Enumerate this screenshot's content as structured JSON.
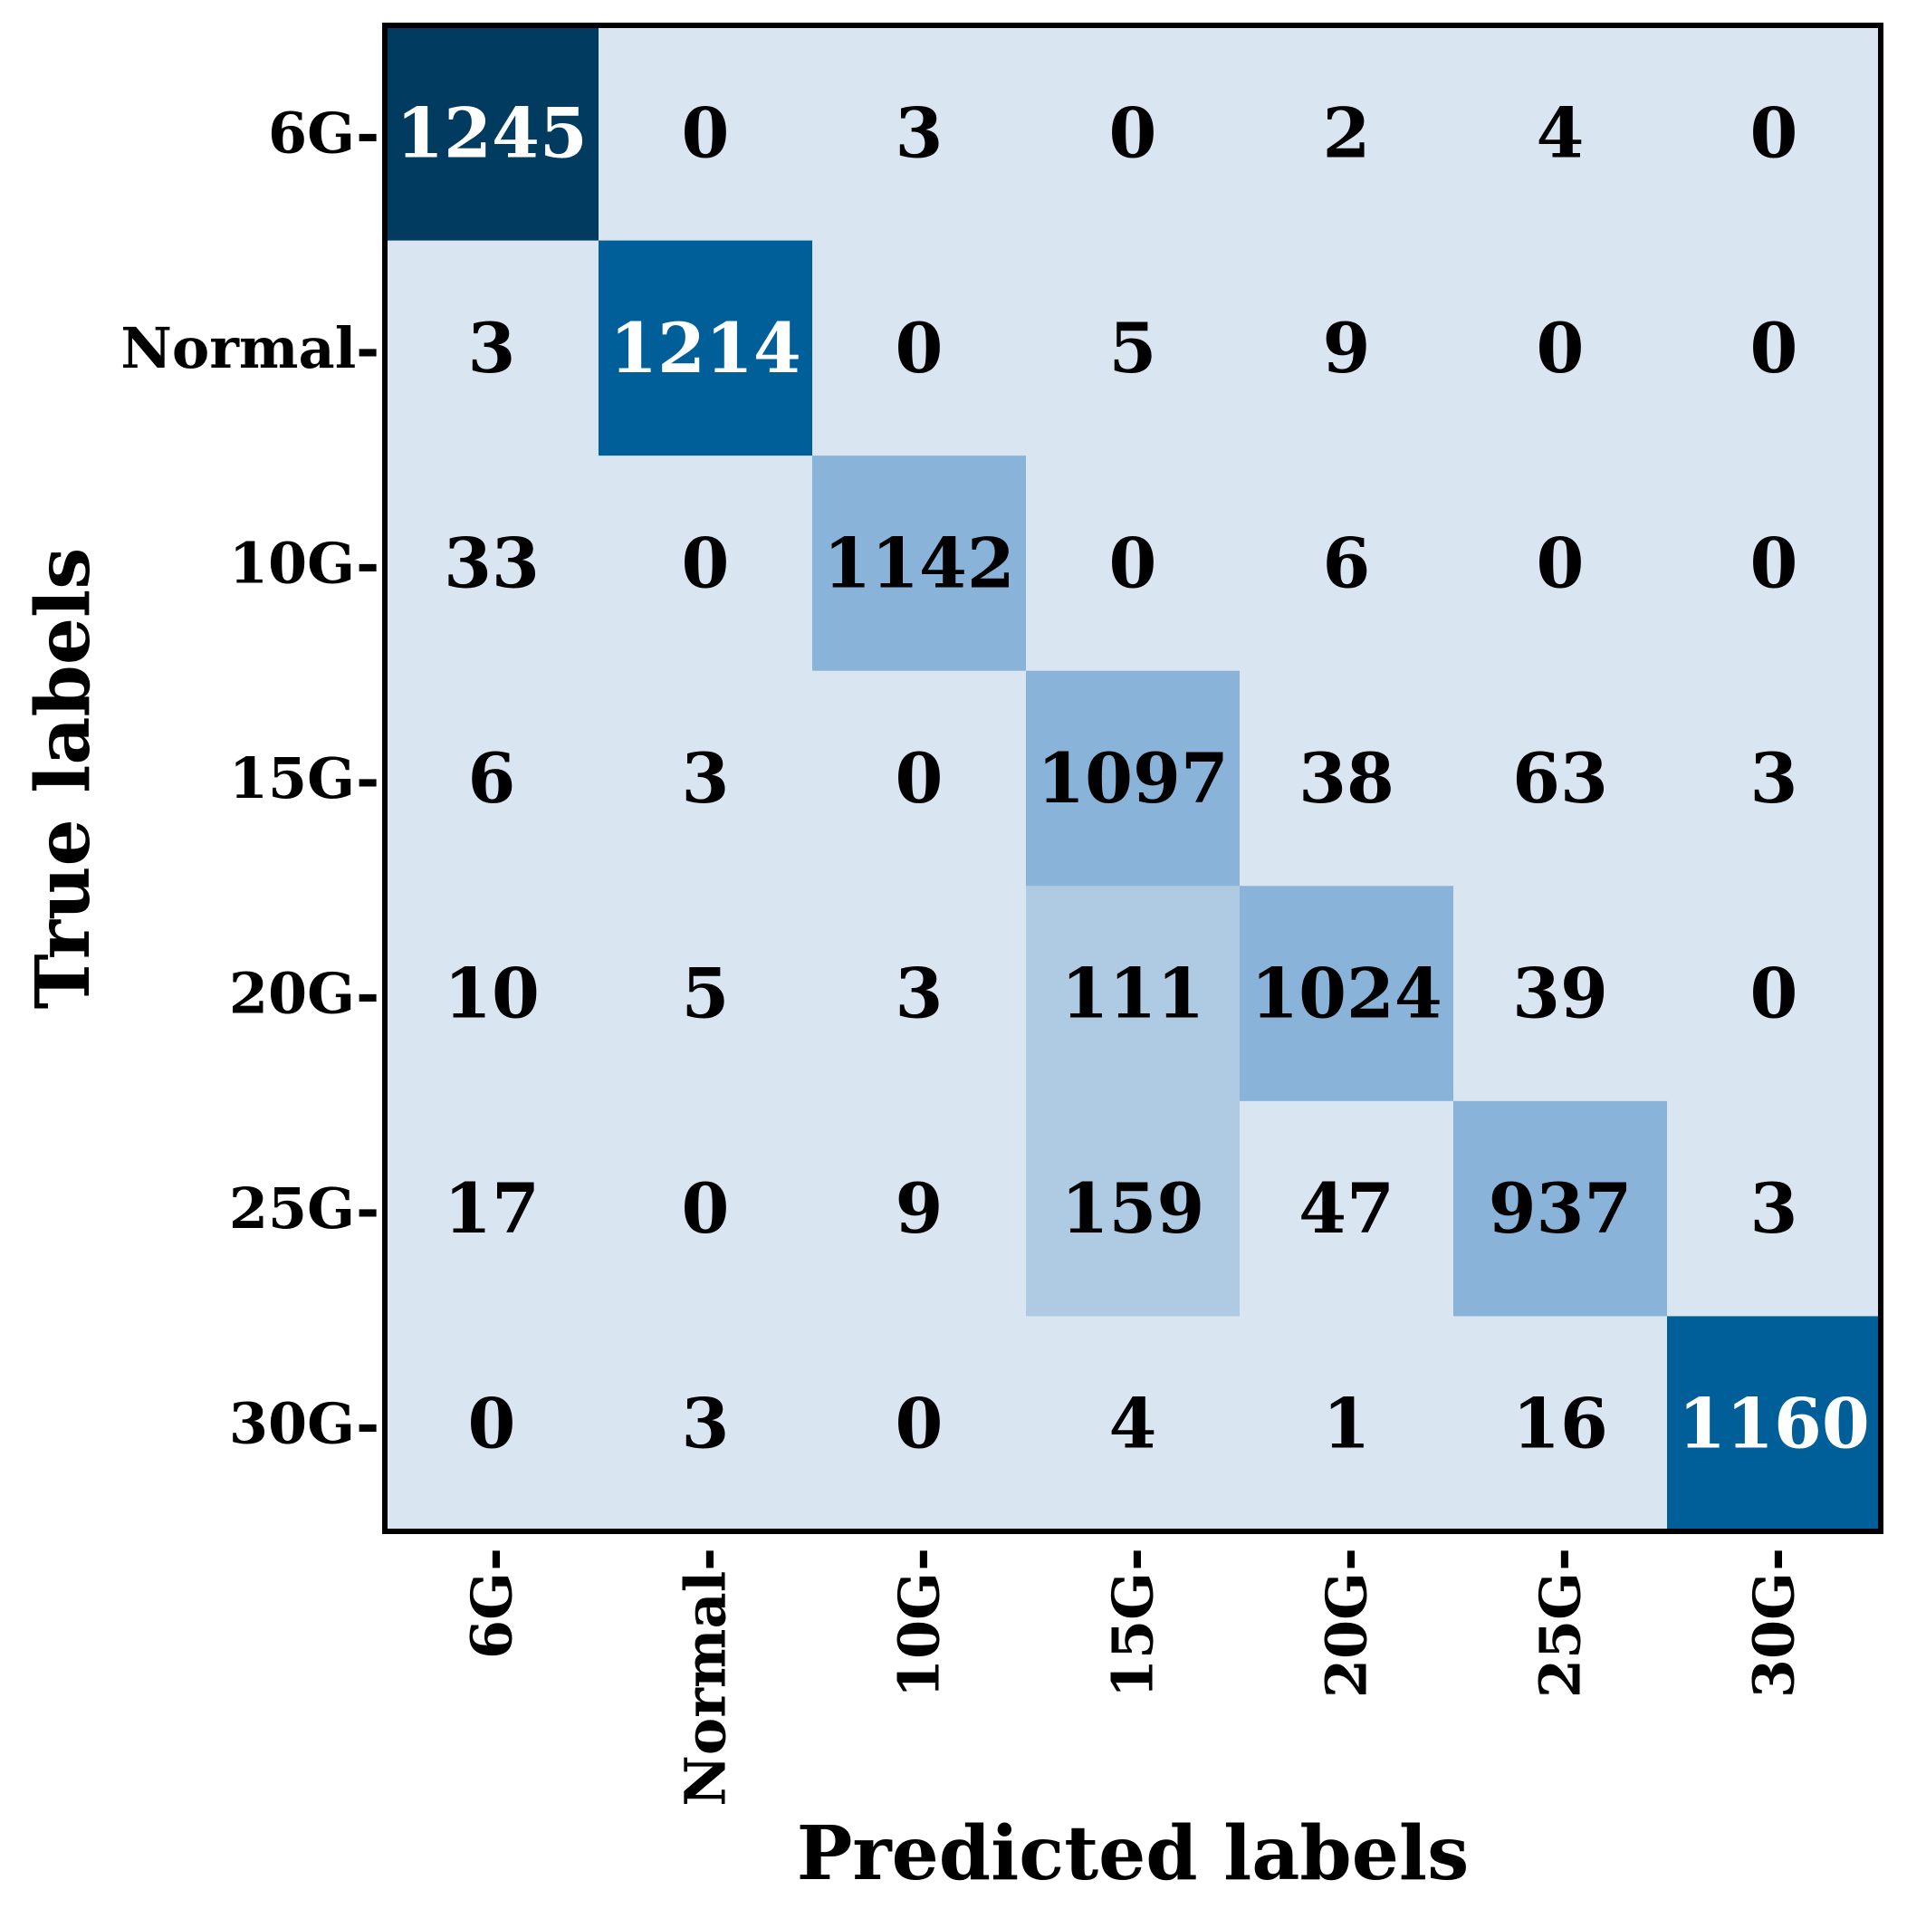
{
  "chart_data": {
    "type": "heatmap",
    "title": "",
    "xlabel": "Predicted labels",
    "ylabel": "True labels",
    "x_tick_labels": [
      "6G-",
      "Normal-",
      "10G-",
      "15G-",
      "20G-",
      "25G-",
      "30G-"
    ],
    "y_tick_labels": [
      "6G-",
      "Normal-",
      "10G-",
      "15G-",
      "20G-",
      "25G-",
      "30G-"
    ],
    "matrix": [
      [
        1245,
        0,
        3,
        0,
        2,
        4,
        0
      ],
      [
        3,
        1214,
        0,
        5,
        9,
        0,
        0
      ],
      [
        33,
        0,
        1142,
        0,
        6,
        0,
        0
      ],
      [
        6,
        3,
        0,
        1097,
        38,
        63,
        3
      ],
      [
        10,
        5,
        3,
        111,
        1024,
        39,
        0
      ],
      [
        17,
        0,
        9,
        159,
        47,
        937,
        3
      ],
      [
        0,
        3,
        0,
        4,
        1,
        16,
        1160
      ]
    ],
    "colormap": "Blues",
    "colors": {
      "lowest": "#d9e6f2",
      "low": "#afcbe4",
      "mid": "#89b3d8",
      "high": "#005e99",
      "highest": "#013c60",
      "text_dark": "#000000",
      "text_light": "#ffffff"
    },
    "grid": false,
    "colorbar": false
  }
}
